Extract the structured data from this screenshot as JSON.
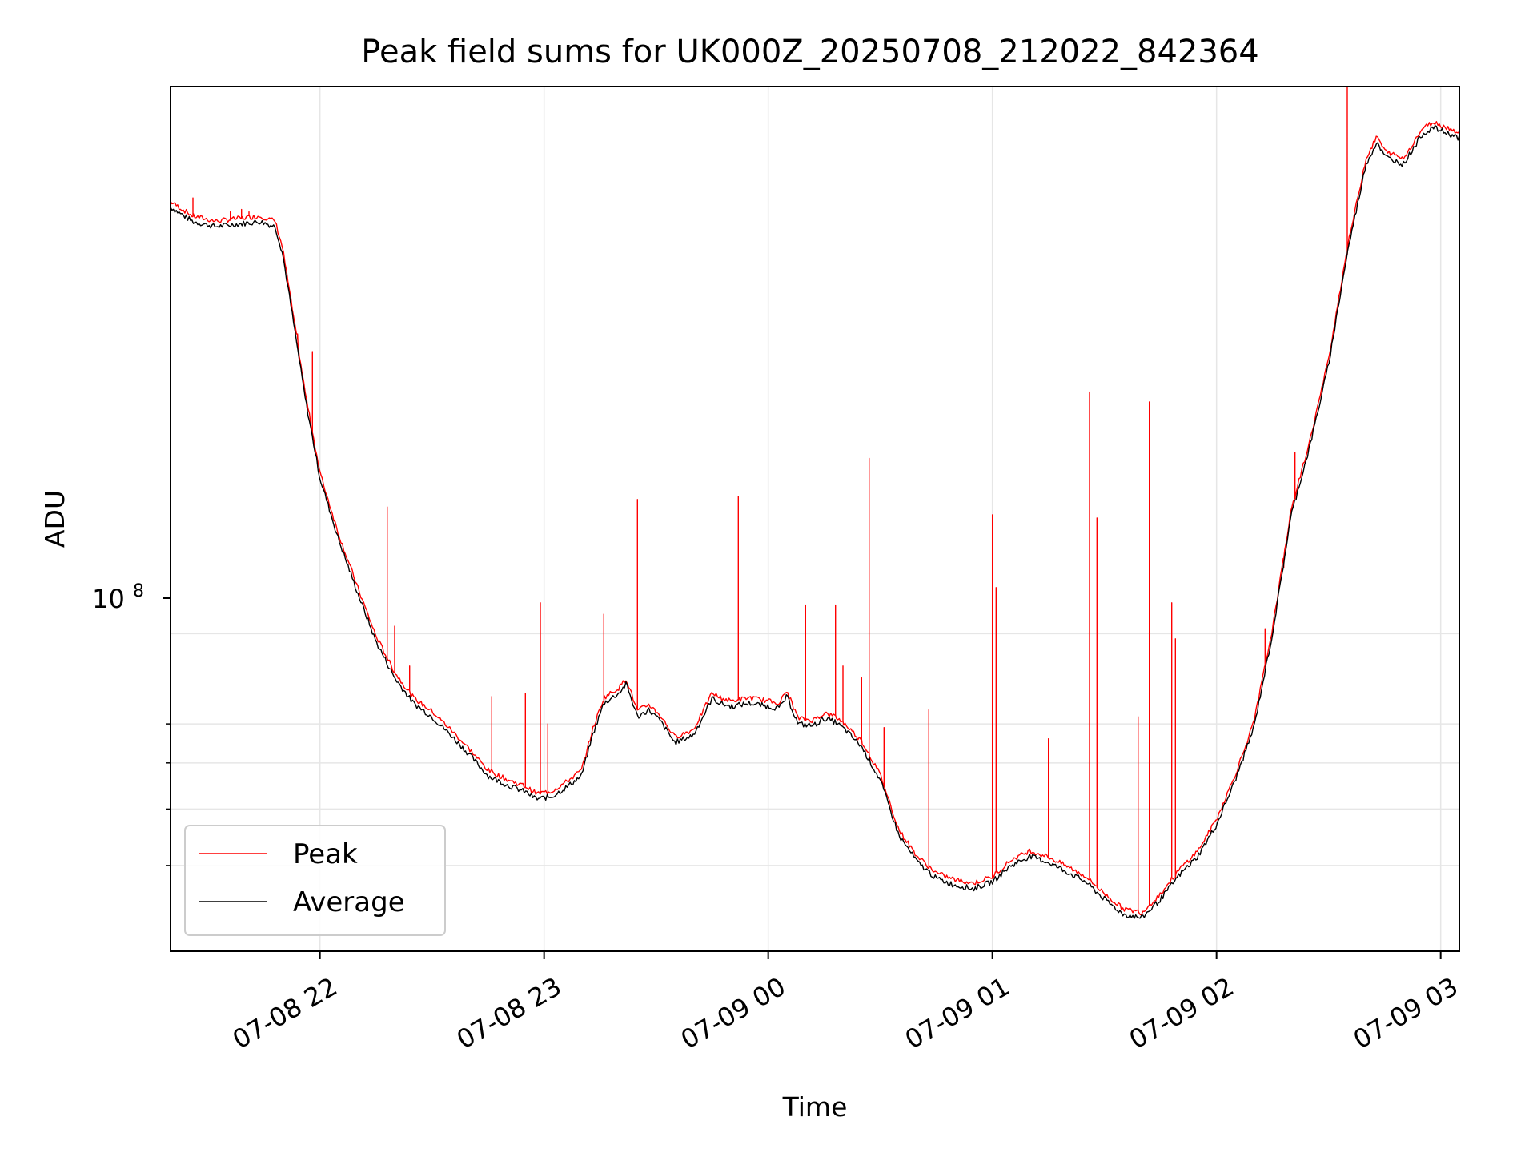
{
  "chart_data": {
    "type": "line",
    "title": "Peak field sums for UK000Z_20250708_212022_842364",
    "xlabel": "Time",
    "ylabel": "ADU",
    "y_scale": "log",
    "ylim": [
      28500000,
      870000000
    ],
    "xlim": [
      "2025-07-08 21:20",
      "2025-07-09 03:05"
    ],
    "grid": true,
    "legend_position": "lower-left",
    "x_ticks": [
      {
        "value": "2025-07-08 22:00",
        "label": "07-08 22"
      },
      {
        "value": "2025-07-08 23:00",
        "label": "07-08 23"
      },
      {
        "value": "2025-07-09 00:00",
        "label": "07-09 00"
      },
      {
        "value": "2025-07-09 01:00",
        "label": "07-09 01"
      },
      {
        "value": "2025-07-09 02:00",
        "label": "07-09 02"
      },
      {
        "value": "2025-07-09 03:00",
        "label": "07-09 03"
      }
    ],
    "y_major_tick": {
      "value": 100000000,
      "label_base": "10",
      "label_exp": "8"
    },
    "y_minor_ticks": [
      40000000,
      50000000,
      60000000,
      70000000
    ],
    "series": [
      {
        "name": "Average",
        "color": "#000000",
        "points": [
          [
            "2025-07-08 21:20",
            540000000
          ],
          [
            "2025-07-08 21:26",
            510000000
          ],
          [
            "2025-07-08 21:32",
            500000000
          ],
          [
            "2025-07-08 21:38",
            505000000
          ],
          [
            "2025-07-08 21:44",
            510000000
          ],
          [
            "2025-07-08 21:48",
            500000000
          ],
          [
            "2025-07-08 21:50",
            450000000
          ],
          [
            "2025-07-08 21:53",
            340000000
          ],
          [
            "2025-07-08 21:56",
            255000000
          ],
          [
            "2025-07-08 22:00",
            185000000
          ],
          [
            "2025-07-08 22:05",
            145000000
          ],
          [
            "2025-07-08 22:10",
            118000000
          ],
          [
            "2025-07-08 22:15",
            97000000
          ],
          [
            "2025-07-08 22:20",
            84000000
          ],
          [
            "2025-07-08 22:25",
            76000000
          ],
          [
            "2025-07-08 22:30",
            72000000
          ],
          [
            "2025-07-08 22:35",
            67000000
          ],
          [
            "2025-07-08 22:40",
            62000000
          ],
          [
            "2025-07-08 22:45",
            57000000
          ],
          [
            "2025-07-08 22:50",
            55000000
          ],
          [
            "2025-07-08 22:55",
            53500000
          ],
          [
            "2025-07-08 22:58",
            52000000
          ],
          [
            "2025-07-08 23:02",
            52500000
          ],
          [
            "2025-07-08 23:06",
            54500000
          ],
          [
            "2025-07-08 23:10",
            57000000
          ],
          [
            "2025-07-08 23:13",
            67000000
          ],
          [
            "2025-07-08 23:16",
            76000000
          ],
          [
            "2025-07-08 23:20",
            79000000
          ],
          [
            "2025-07-08 23:22",
            82000000
          ],
          [
            "2025-07-08 23:25",
            72000000
          ],
          [
            "2025-07-08 23:28",
            74000000
          ],
          [
            "2025-07-08 23:31",
            71000000
          ],
          [
            "2025-07-08 23:35",
            65000000
          ],
          [
            "2025-07-08 23:40",
            67000000
          ],
          [
            "2025-07-08 23:43",
            73000000
          ],
          [
            "2025-07-08 23:45",
            77500000
          ],
          [
            "2025-07-08 23:47",
            76000000
          ],
          [
            "2025-07-08 23:50",
            75000000
          ],
          [
            "2025-07-08 23:55",
            76000000
          ],
          [
            "2025-07-09 00:00",
            75000000
          ],
          [
            "2025-07-09 00:03",
            74500000
          ],
          [
            "2025-07-09 00:05",
            78000000
          ],
          [
            "2025-07-09 00:08",
            70000000
          ],
          [
            "2025-07-09 00:12",
            69500000
          ],
          [
            "2025-07-09 00:15",
            71500000
          ],
          [
            "2025-07-09 00:18",
            70500000
          ],
          [
            "2025-07-09 00:21",
            68000000
          ],
          [
            "2025-07-09 00:25",
            64000000
          ],
          [
            "2025-07-09 00:30",
            56000000
          ],
          [
            "2025-07-09 00:35",
            45000000
          ],
          [
            "2025-07-09 00:40",
            40500000
          ],
          [
            "2025-07-09 00:45",
            38000000
          ],
          [
            "2025-07-09 00:50",
            37000000
          ],
          [
            "2025-07-09 00:55",
            36500000
          ],
          [
            "2025-07-09 01:00",
            37500000
          ],
          [
            "2025-07-09 01:05",
            40000000
          ],
          [
            "2025-07-09 01:10",
            41500000
          ],
          [
            "2025-07-09 01:15",
            40500000
          ],
          [
            "2025-07-09 01:20",
            39000000
          ],
          [
            "2025-07-09 01:25",
            37500000
          ],
          [
            "2025-07-09 01:30",
            35000000
          ],
          [
            "2025-07-09 01:35",
            33000000
          ],
          [
            "2025-07-09 01:40",
            32500000
          ],
          [
            "2025-07-09 01:45",
            35000000
          ],
          [
            "2025-07-09 01:50",
            38500000
          ],
          [
            "2025-07-09 01:55",
            41500000
          ],
          [
            "2025-07-09 02:00",
            47000000
          ],
          [
            "2025-07-09 02:05",
            56000000
          ],
          [
            "2025-07-09 02:10",
            69000000
          ],
          [
            "2025-07-09 02:15",
            100000000
          ],
          [
            "2025-07-09 02:20",
            160000000
          ],
          [
            "2025-07-09 02:25",
            210000000
          ],
          [
            "2025-07-09 02:30",
            290000000
          ],
          [
            "2025-07-09 02:35",
            450000000
          ],
          [
            "2025-07-09 02:40",
            640000000
          ],
          [
            "2025-07-09 02:43",
            700000000
          ],
          [
            "2025-07-09 02:45",
            660000000
          ],
          [
            "2025-07-09 02:50",
            640000000
          ],
          [
            "2025-07-09 02:55",
            720000000
          ],
          [
            "2025-07-09 02:58",
            740000000
          ],
          [
            "2025-07-09 03:05",
            710000000
          ]
        ]
      },
      {
        "name": "Peak",
        "color": "#ff0000",
        "spikes": [
          [
            "2025-07-08 21:26",
            560000000
          ],
          [
            "2025-07-08 21:36",
            530000000
          ],
          [
            "2025-07-08 21:39",
            535000000
          ],
          [
            "2025-07-08 21:41",
            530000000
          ],
          [
            "2025-07-08 21:54",
            320000000
          ],
          [
            "2025-07-08 21:58",
            305000000
          ],
          [
            "2025-07-08 22:18",
            165000000
          ],
          [
            "2025-07-08 22:20",
            103000000
          ],
          [
            "2025-07-08 22:24",
            88000000
          ],
          [
            "2025-07-08 22:46",
            78000000
          ],
          [
            "2025-07-08 22:55",
            79000000
          ],
          [
            "2025-07-08 22:59",
            113000000
          ],
          [
            "2025-07-08 23:01",
            70000000
          ],
          [
            "2025-07-08 23:16",
            108000000
          ],
          [
            "2025-07-08 23:25",
            170000000
          ],
          [
            "2025-07-08 23:52",
            172000000
          ],
          [
            "2025-07-09 00:10",
            112000000
          ],
          [
            "2025-07-09 00:18",
            112000000
          ],
          [
            "2025-07-09 00:20",
            88000000
          ],
          [
            "2025-07-09 00:25",
            84000000
          ],
          [
            "2025-07-09 00:27",
            200000000
          ],
          [
            "2025-07-09 00:31",
            69000000
          ],
          [
            "2025-07-09 00:43",
            74000000
          ],
          [
            "2025-07-09 01:00",
            160000000
          ],
          [
            "2025-07-09 01:01",
            120000000
          ],
          [
            "2025-07-09 01:15",
            66000000
          ],
          [
            "2025-07-09 01:26",
            260000000
          ],
          [
            "2025-07-09 01:28",
            158000000
          ],
          [
            "2025-07-09 01:39",
            72000000
          ],
          [
            "2025-07-09 01:42",
            250000000
          ],
          [
            "2025-07-09 01:48",
            113000000
          ],
          [
            "2025-07-09 01:49",
            98000000
          ],
          [
            "2025-07-09 02:13",
            102000000
          ],
          [
            "2025-07-09 02:18",
            130000000
          ],
          [
            "2025-07-09 02:21",
            205000000
          ],
          [
            "2025-07-09 02:35",
            870000000
          ]
        ]
      }
    ]
  }
}
